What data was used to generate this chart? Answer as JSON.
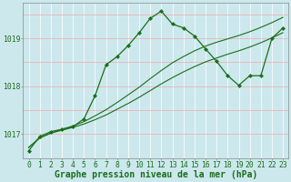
{
  "series_main": {
    "x": [
      0,
      1,
      2,
      3,
      4,
      5,
      6,
      7,
      8,
      9,
      10,
      11,
      12,
      13,
      14,
      15,
      16,
      17,
      18,
      19,
      20,
      21,
      22,
      23
    ],
    "y": [
      1016.65,
      1016.95,
      1017.05,
      1017.1,
      1017.15,
      1017.32,
      1017.8,
      1018.45,
      1018.62,
      1018.85,
      1019.12,
      1019.42,
      1019.57,
      1019.3,
      1019.22,
      1019.05,
      1018.78,
      1018.52,
      1018.22,
      1018.02,
      1018.22,
      1018.22,
      1019.0,
      1019.22
    ]
  },
  "series_env1": {
    "x": [
      0,
      1,
      2,
      3,
      4,
      5,
      6,
      7,
      8,
      9,
      10,
      11,
      12,
      13,
      14,
      15,
      16,
      17,
      18,
      19,
      20,
      21,
      22,
      23
    ],
    "y": [
      1016.72,
      1016.92,
      1017.02,
      1017.08,
      1017.14,
      1017.21,
      1017.3,
      1017.4,
      1017.52,
      1017.64,
      1017.77,
      1017.91,
      1018.05,
      1018.18,
      1018.3,
      1018.41,
      1018.51,
      1018.59,
      1018.67,
      1018.74,
      1018.82,
      1018.91,
      1019.01,
      1019.12
    ]
  },
  "series_env2": {
    "x": [
      0,
      1,
      2,
      3,
      4,
      5,
      6,
      7,
      8,
      9,
      10,
      11,
      12,
      13,
      14,
      15,
      16,
      17,
      18,
      19,
      20,
      21,
      22,
      23
    ],
    "y": [
      1016.72,
      1016.92,
      1017.02,
      1017.1,
      1017.17,
      1017.26,
      1017.38,
      1017.51,
      1017.66,
      1017.82,
      1017.98,
      1018.16,
      1018.33,
      1018.49,
      1018.62,
      1018.74,
      1018.84,
      1018.92,
      1018.99,
      1019.06,
      1019.14,
      1019.23,
      1019.33,
      1019.44
    ]
  },
  "bg_color": "#cce8ed",
  "line_color": "#1a6e1a",
  "vgrid_color": "#ffffff",
  "hgrid_color": "#f0aaaa",
  "xlabel": "Graphe pression niveau de la mer (hPa)",
  "yticks": [
    1017,
    1018,
    1019
  ],
  "xticks": [
    0,
    1,
    2,
    3,
    4,
    5,
    6,
    7,
    8,
    9,
    10,
    11,
    12,
    13,
    14,
    15,
    16,
    17,
    18,
    19,
    20,
    21,
    22,
    23
  ],
  "xlim": [
    -0.5,
    23.5
  ],
  "ylim": [
    1016.5,
    1019.75
  ],
  "xlabel_fontsize": 7.0,
  "tick_fontsize": 5.8
}
